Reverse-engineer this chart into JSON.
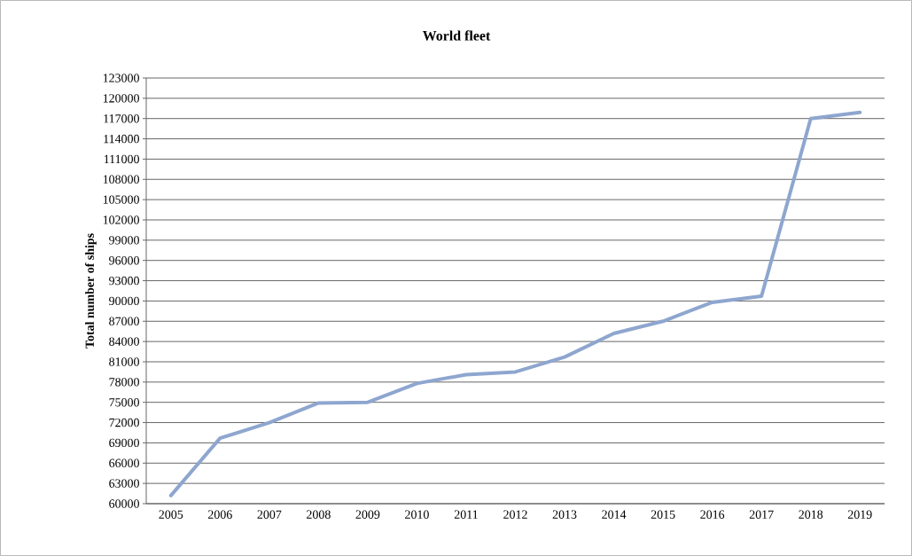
{
  "chart_data": {
    "type": "line",
    "title": "World fleet",
    "ylabel": "Total number of ships",
    "categories": [
      "2005",
      "2006",
      "2007",
      "2008",
      "2009",
      "2010",
      "2011",
      "2012",
      "2013",
      "2014",
      "2015",
      "2016",
      "2017",
      "2018",
      "2019"
    ],
    "values": [
      61200,
      69700,
      72000,
      74900,
      75000,
      77800,
      79100,
      79500,
      81700,
      85200,
      87000,
      89800,
      90700,
      117000,
      117900
    ],
    "color": "#8ea6cf",
    "ylim": [
      60000,
      123000
    ],
    "yticks": [
      60000,
      63000,
      66000,
      69000,
      72000,
      75000,
      78000,
      81000,
      84000,
      87000,
      90000,
      93000,
      96000,
      99000,
      102000,
      105000,
      108000,
      111000,
      114000,
      117000,
      120000,
      123000
    ],
    "grid": "y"
  }
}
